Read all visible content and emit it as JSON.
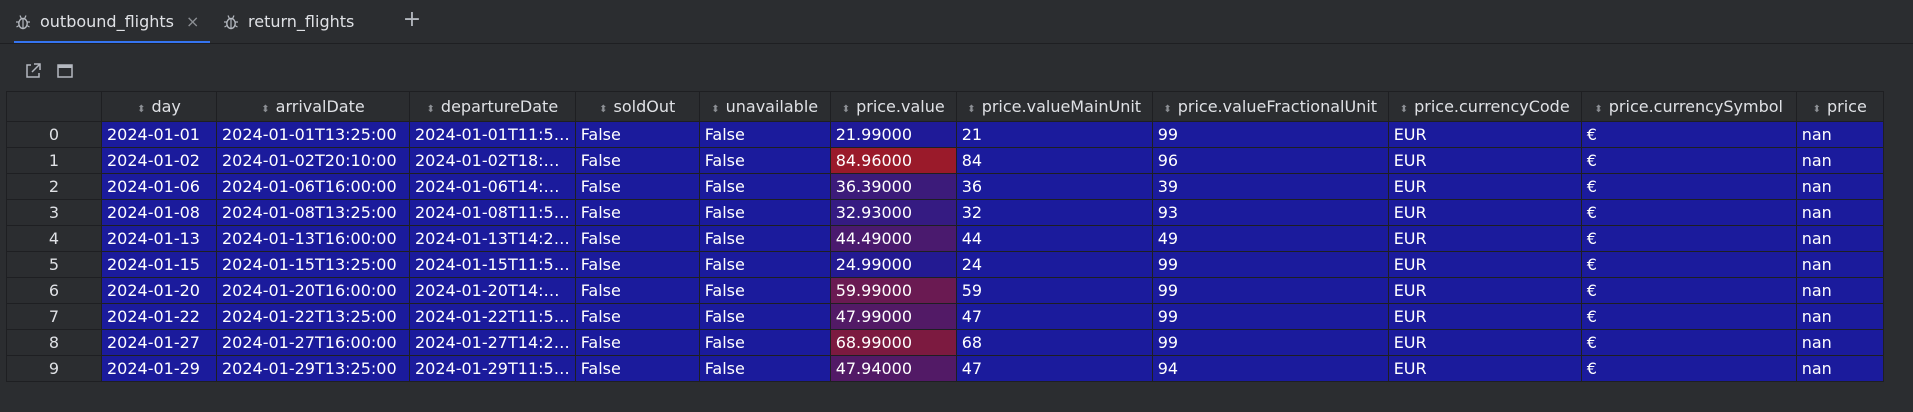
{
  "tabs": [
    {
      "label": "outbound_flights",
      "active": true,
      "close": "×"
    },
    {
      "label": "return_flights",
      "active": false
    }
  ],
  "add_tab_glyph": "+",
  "table": {
    "columns": [
      "day",
      "arrivalDate",
      "departureDate",
      "soldOut",
      "unavailable",
      "price.value",
      "price.valueMainUnit",
      "price.valueFractionalUnit",
      "price.currencyCode",
      "price.currencySymbol",
      "price"
    ],
    "rows": [
      {
        "index": "0",
        "cells": [
          "2024-01-01",
          "2024-01-01T13:25:00",
          "2024-01-01T11:5…",
          "False",
          "False",
          "21.99000",
          "21",
          "99",
          "EUR",
          "€",
          "nan"
        ],
        "price_bg": "#1f1a98"
      },
      {
        "index": "1",
        "cells": [
          "2024-01-02",
          "2024-01-02T20:10:00",
          "2024-01-02T18:…",
          "False",
          "False",
          "84.96000",
          "84",
          "96",
          "EUR",
          "€",
          "nan"
        ],
        "price_bg": "#9a1a2a"
      },
      {
        "index": "2",
        "cells": [
          "2024-01-06",
          "2024-01-06T16:00:00",
          "2024-01-06T14:…",
          "False",
          "False",
          "36.39000",
          "36",
          "39",
          "EUR",
          "€",
          "nan"
        ],
        "price_bg": "#3c1b7a"
      },
      {
        "index": "3",
        "cells": [
          "2024-01-08",
          "2024-01-08T13:25:00",
          "2024-01-08T11:5…",
          "False",
          "False",
          "32.93000",
          "32",
          "93",
          "EUR",
          "€",
          "nan"
        ],
        "price_bg": "#351b82"
      },
      {
        "index": "4",
        "cells": [
          "2024-01-13",
          "2024-01-13T16:00:00",
          "2024-01-13T14:2…",
          "False",
          "False",
          "44.49000",
          "44",
          "49",
          "EUR",
          "€",
          "nan"
        ],
        "price_bg": "#4a1a6e"
      },
      {
        "index": "5",
        "cells": [
          "2024-01-15",
          "2024-01-15T13:25:00",
          "2024-01-15T11:5…",
          "False",
          "False",
          "24.99000",
          "24",
          "99",
          "EUR",
          "€",
          "nan"
        ],
        "price_bg": "#231a92"
      },
      {
        "index": "6",
        "cells": [
          "2024-01-20",
          "2024-01-20T16:00:00",
          "2024-01-20T14:…",
          "False",
          "False",
          "59.99000",
          "59",
          "99",
          "EUR",
          "€",
          "nan"
        ],
        "price_bg": "#6a1a52"
      },
      {
        "index": "7",
        "cells": [
          "2024-01-22",
          "2024-01-22T13:25:00",
          "2024-01-22T11:5…",
          "False",
          "False",
          "47.99000",
          "47",
          "99",
          "EUR",
          "€",
          "nan"
        ],
        "price_bg": "#521a66"
      },
      {
        "index": "8",
        "cells": [
          "2024-01-27",
          "2024-01-27T16:00:00",
          "2024-01-27T14:2…",
          "False",
          "False",
          "68.99000",
          "68",
          "99",
          "EUR",
          "€",
          "nan"
        ],
        "price_bg": "#7c1a40"
      },
      {
        "index": "9",
        "cells": [
          "2024-01-29",
          "2024-01-29T13:25:00",
          "2024-01-29T11:5…",
          "False",
          "False",
          "47.94000",
          "47",
          "94",
          "EUR",
          "€",
          "nan"
        ],
        "price_bg": "#521a66"
      }
    ]
  },
  "colors": {
    "accent": "#3574f0",
    "cell_bg": "#1b1b9c",
    "cell_text": "#ffffff",
    "panel_bg": "#2b2d30"
  }
}
